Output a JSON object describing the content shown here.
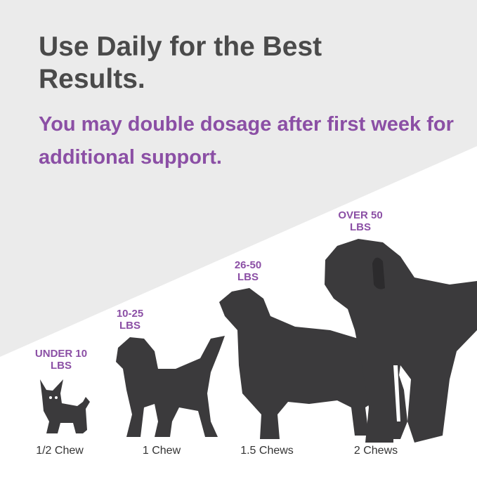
{
  "headline": "Use Daily for the Best Results.",
  "subheadline": "You may double dosage after first week for additional support.",
  "colors": {
    "background_gray": "#ebebeb",
    "headline": "#4a4a4a",
    "accent_purple": "#8b4fa5",
    "dog_silhouette": "#3b3a3c"
  },
  "dosage": [
    {
      "weight": "UNDER 10 LBS",
      "amount": "1/2 Chew",
      "icon": "small-dog-icon"
    },
    {
      "weight": "10-25 LBS",
      "amount": "1 Chew",
      "icon": "medium-dog-icon"
    },
    {
      "weight": "26-50 LBS",
      "amount": "1.5 Chews",
      "icon": "large-dog-icon"
    },
    {
      "weight": "OVER 50 LBS",
      "amount": "2 Chews",
      "icon": "giant-dog-icon"
    }
  ]
}
